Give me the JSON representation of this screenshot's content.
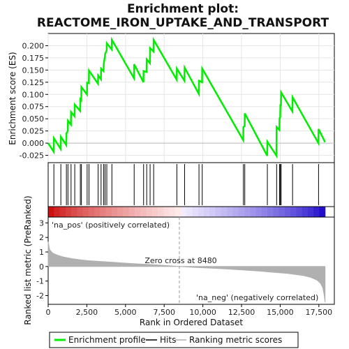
{
  "title_line1": "Enrichment plot:",
  "title_line2": "REACTOME_IRON_UPTAKE_AND_TRANSPORT",
  "top_ylabel": "Enrichment score (ES)",
  "bottom_ylabel": "Ranked list metric (PreRanked)",
  "xlabel": "Rank in Ordered Dataset",
  "pos_label": "'na_pos' (positively correlated)",
  "neg_label": "'na_neg' (negatively correlated)",
  "zero_cross_label": "Zero cross at 8480",
  "legend": {
    "enrichment": "Enrichment profile",
    "hits": "Hits",
    "ranking": "Ranking metric scores"
  },
  "colors": {
    "enrichment_line": "#00ee00",
    "hits": "#000000",
    "ranking_fill": "#b0b0b0",
    "pos_label": "#cc0000",
    "neg_label": "#0000cc",
    "zero_line": "#999999"
  },
  "chart_data": {
    "type": "line",
    "x_ticks": [
      "0",
      "2,500",
      "5,000",
      "7,500",
      "10,000",
      "12,500",
      "15,000",
      "17,500"
    ],
    "x_tick_values": [
      0,
      2500,
      5000,
      7500,
      10000,
      12500,
      15000,
      17500
    ],
    "xlim": [
      0,
      18500
    ],
    "es_ylim": [
      -0.04,
      0.225
    ],
    "es_y_ticks": [
      "-0.025",
      "0.000",
      "0.025",
      "0.050",
      "0.075",
      "0.100",
      "0.125",
      "0.150",
      "0.175",
      "0.200"
    ],
    "es_y_tick_values": [
      -0.025,
      0,
      0.025,
      0.05,
      0.075,
      0.1,
      0.125,
      0.15,
      0.175,
      0.2
    ],
    "metric_ylim": [
      -2.6,
      3.4
    ],
    "metric_y_ticks": [
      "3",
      "2",
      "1",
      "0",
      "-1",
      "-2"
    ],
    "metric_y_tick_values": [
      3,
      2,
      1,
      0,
      -1,
      -2
    ],
    "zero_cross": 8480,
    "n_genes": 17900,
    "hits": [
      370,
      820,
      1180,
      1280,
      1480,
      1720,
      2080,
      2150,
      2520,
      2640,
      3230,
      3420,
      3590,
      3680,
      3790,
      4120,
      5560,
      6170,
      6370,
      6590,
      6820,
      8320,
      8820,
      9750,
      9960,
      12620,
      12710,
      14170,
      14770,
      14960,
      15010,
      15060,
      15800,
      17480
    ],
    "es_points": [
      [
        0,
        0.0
      ],
      [
        360,
        -0.018
      ],
      [
        370,
        0.01
      ],
      [
        810,
        -0.012
      ],
      [
        820,
        0.013
      ],
      [
        1170,
        -0.004
      ],
      [
        1180,
        0.02
      ],
      [
        1270,
        0.025
      ],
      [
        1280,
        0.046
      ],
      [
        1470,
        0.038
      ],
      [
        1480,
        0.064
      ],
      [
        1710,
        0.055
      ],
      [
        1720,
        0.079
      ],
      [
        2070,
        0.066
      ],
      [
        2080,
        0.09
      ],
      [
        2140,
        0.088
      ],
      [
        2150,
        0.115
      ],
      [
        2510,
        0.1
      ],
      [
        2520,
        0.124
      ],
      [
        2630,
        0.123
      ],
      [
        2640,
        0.149
      ],
      [
        3220,
        0.122
      ],
      [
        3230,
        0.139
      ],
      [
        3410,
        0.131
      ],
      [
        3420,
        0.153
      ],
      [
        3580,
        0.148
      ],
      [
        3590,
        0.162
      ],
      [
        3670,
        0.178
      ],
      [
        3680,
        0.183
      ],
      [
        3780,
        0.19
      ],
      [
        3790,
        0.205
      ],
      [
        4110,
        0.192
      ],
      [
        4120,
        0.212
      ],
      [
        5550,
        0.133
      ],
      [
        5560,
        0.162
      ],
      [
        6160,
        0.125
      ],
      [
        6170,
        0.148
      ],
      [
        6360,
        0.146
      ],
      [
        6370,
        0.172
      ],
      [
        6580,
        0.164
      ],
      [
        6590,
        0.195
      ],
      [
        6810,
        0.188
      ],
      [
        6820,
        0.212
      ],
      [
        8310,
        0.13
      ],
      [
        8320,
        0.153
      ],
      [
        8810,
        0.128
      ],
      [
        8820,
        0.155
      ],
      [
        9740,
        0.101
      ],
      [
        9750,
        0.128
      ],
      [
        9950,
        0.125
      ],
      [
        9960,
        0.153
      ],
      [
        12610,
        0.006
      ],
      [
        12620,
        0.033
      ],
      [
        12700,
        0.035
      ],
      [
        12710,
        0.061
      ],
      [
        14160,
        -0.026
      ],
      [
        14170,
        0.003
      ],
      [
        14760,
        -0.026
      ],
      [
        14770,
        0.033
      ],
      [
        14950,
        0.027
      ],
      [
        14960,
        0.051
      ],
      [
        15000,
        0.052
      ],
      [
        15010,
        0.078
      ],
      [
        15050,
        0.078
      ],
      [
        15060,
        0.104
      ],
      [
        15790,
        0.065
      ],
      [
        15800,
        0.094
      ],
      [
        17470,
        0.0
      ],
      [
        17480,
        0.029
      ],
      [
        17900,
        0.002
      ]
    ],
    "metric_points": [
      [
        0,
        1.7
      ],
      [
        100,
        1.15
      ],
      [
        300,
        0.92
      ],
      [
        600,
        0.78
      ],
      [
        1000,
        0.65
      ],
      [
        1500,
        0.55
      ],
      [
        2000,
        0.47
      ],
      [
        2500,
        0.41
      ],
      [
        3500,
        0.34
      ],
      [
        4500,
        0.27
      ],
      [
        5500,
        0.2
      ],
      [
        6500,
        0.14
      ],
      [
        7500,
        0.08
      ],
      [
        8480,
        0.0
      ],
      [
        9500,
        -0.06
      ],
      [
        10500,
        -0.11
      ],
      [
        11500,
        -0.16
      ],
      [
        12500,
        -0.23
      ],
      [
        13500,
        -0.3
      ],
      [
        14500,
        -0.39
      ],
      [
        15500,
        -0.48
      ],
      [
        16500,
        -0.62
      ],
      [
        17000,
        -0.75
      ],
      [
        17400,
        -0.95
      ],
      [
        17600,
        -1.15
      ],
      [
        17750,
        -1.45
      ],
      [
        17850,
        -2.0
      ],
      [
        17900,
        -2.45
      ]
    ]
  }
}
